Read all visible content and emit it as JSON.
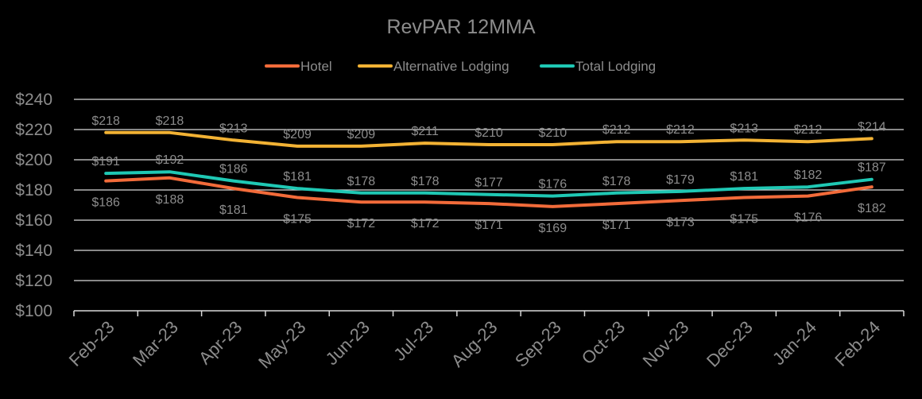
{
  "chart_data": {
    "type": "line",
    "title": "RevPAR 12MMA",
    "xlabel": "",
    "ylabel": "",
    "ylim": [
      100,
      240
    ],
    "yticks": [
      100,
      120,
      140,
      160,
      180,
      200,
      220,
      240
    ],
    "ytick_labels": [
      "$100",
      "$120",
      "$140",
      "$160",
      "$180",
      "$200",
      "$220",
      "$240"
    ],
    "categories": [
      "Feb-23",
      "Mar-23",
      "Apr-23",
      "May-23",
      "Jun-23",
      "Jul-23",
      "Aug-23",
      "Sep-23",
      "Oct-23",
      "Nov-23",
      "Dec-23",
      "Jan-24",
      "Feb-24"
    ],
    "grid": true,
    "legend_position": "top-center",
    "series": [
      {
        "name": "Hotel",
        "color": "#F26B3A",
        "values": [
          186,
          188,
          181,
          175,
          172,
          172,
          171,
          169,
          171,
          173,
          175,
          176,
          182
        ],
        "labels": [
          "$186",
          "$188",
          "$181",
          "$175",
          "$172",
          "$172",
          "$171",
          "$169",
          "$171",
          "$173",
          "$175",
          "$176",
          "$182"
        ],
        "label_position": "below"
      },
      {
        "name": "Alternative Lodging",
        "color": "#F2B234",
        "values": [
          218,
          218,
          213,
          209,
          209,
          211,
          210,
          210,
          212,
          212,
          213,
          212,
          214
        ],
        "labels": [
          "$218",
          "$218",
          "$213",
          "$209",
          "$209",
          "$211",
          "$210",
          "$210",
          "$212",
          "$212",
          "$213",
          "$212",
          "$214"
        ],
        "label_position": "above"
      },
      {
        "name": "Total Lodging",
        "color": "#1FC8B4",
        "values": [
          191,
          192,
          186,
          181,
          178,
          178,
          177,
          176,
          178,
          179,
          181,
          182,
          187
        ],
        "labels": [
          "$191",
          "$192",
          "$186",
          "$181",
          "$178",
          "$178",
          "$177",
          "$176",
          "$178",
          "$179",
          "$181",
          "$182",
          "$187"
        ],
        "label_position": "above"
      }
    ]
  },
  "colors": {
    "background": "#000000",
    "text": "#8C8C8C",
    "grid": "#D9D9D9",
    "axis": "#D9D9D9"
  }
}
